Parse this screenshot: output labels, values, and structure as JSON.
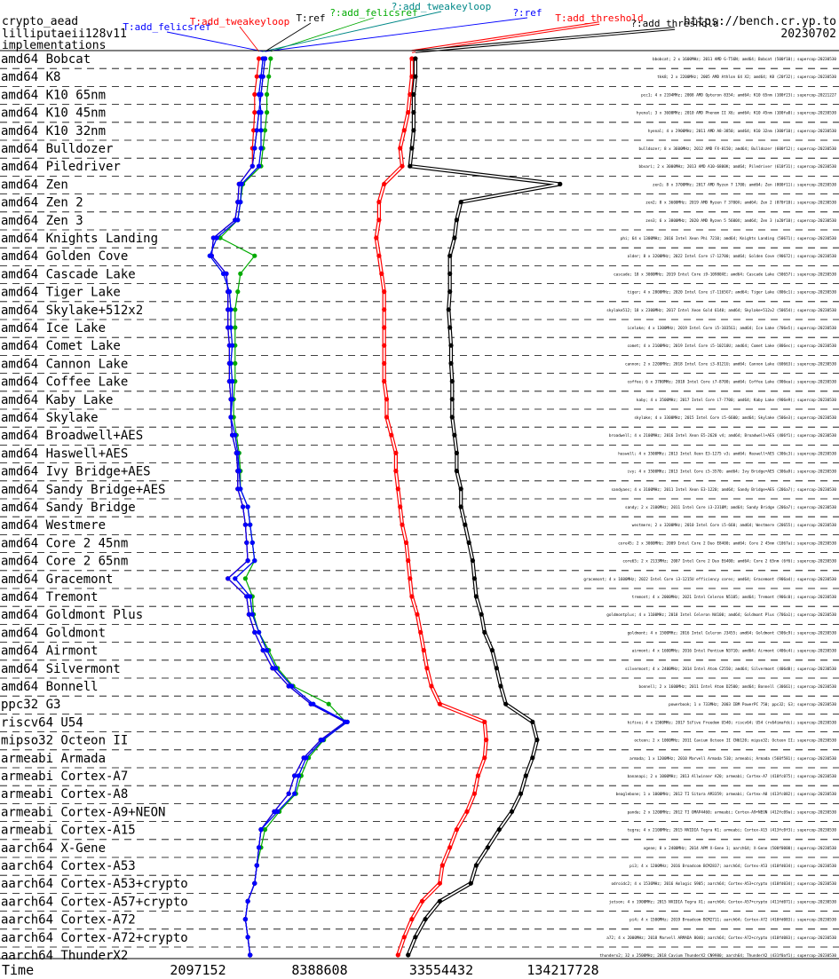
{
  "header": {
    "title_lines": [
      "crypto_aead",
      "lilliputaeii128v11",
      "implementations"
    ],
    "site": "https://bench.cr.yp.to",
    "date": "20230702"
  },
  "chart_data": {
    "type": "line",
    "xlabel": "Time",
    "x_scale": "log2",
    "xlim": [
      1300000,
      240000000
    ],
    "x_ticks": [
      2097152,
      8388608,
      33554432,
      134217728
    ],
    "x_tick_labels": [
      "2097152",
      "8388608",
      "33554432",
      "134217728"
    ],
    "grid": "dashed horizontal separators between machines",
    "categories": [
      "amd64 Bobcat",
      "amd64 K8",
      "amd64 K10 65nm",
      "amd64 K10 45nm",
      "amd64 K10 32nm",
      "amd64 Bulldozer",
      "amd64 Piledriver",
      "amd64 Zen",
      "amd64 Zen 2",
      "amd64 Zen 3",
      "amd64 Knights Landing",
      "amd64 Golden Cove",
      "amd64 Cascade Lake",
      "amd64 Tiger Lake",
      "amd64 Skylake+512x2",
      "amd64 Ice Lake",
      "amd64 Comet Lake",
      "amd64 Cannon Lake",
      "amd64 Coffee Lake",
      "amd64 Kaby Lake",
      "amd64 Skylake",
      "amd64 Broadwell+AES",
      "amd64 Haswell+AES",
      "amd64 Ivy Bridge+AES",
      "amd64 Sandy Bridge+AES",
      "amd64 Sandy Bridge",
      "amd64 Westmere",
      "amd64 Core 2 45nm",
      "amd64 Core 2 65nm",
      "amd64 Gracemont",
      "amd64 Tremont",
      "amd64 Goldmont Plus",
      "amd64 Goldmont",
      "amd64 Airmont",
      "amd64 Silvermont",
      "amd64 Bonnell",
      "ppc32 G3",
      "riscv64 U54",
      "mipso32 Octeon II",
      "armeabi Armada",
      "armeabi Cortex-A7",
      "armeabi Cortex-A8",
      "armeabi Cortex-A9+NEON",
      "armeabi Cortex-A15",
      "aarch64 X-Gene",
      "aarch64 Cortex-A53",
      "aarch64 Cortex-A53+crypto",
      "aarch64 Cortex-A57+crypto",
      "aarch64 Cortex-A72",
      "aarch64 Cortex-A72+crypto",
      "aarch64 ThunderX2"
    ],
    "series": [
      {
        "name": "T:add_felicsref",
        "color": "#0000ff",
        "values": [
          4400000,
          4300000,
          4200000,
          4300000,
          4300000,
          4300000,
          4200000,
          3450000,
          3400000,
          3300000,
          2600000,
          2400000,
          2800000,
          3000000,
          3050000,
          3050000,
          3100000,
          3050000,
          3100000,
          3100000,
          3050000,
          3200000,
          3300000,
          3350000,
          3400000,
          3700000,
          3800000,
          3900000,
          4000000,
          3200000,
          3800000,
          3900000,
          4200000,
          4600000,
          5100000,
          6100000,
          7800000,
          11500000,
          8700000,
          7200000,
          6600000,
          6300000,
          5200000,
          4300000,
          4200000,
          4100000,
          4000000,
          3700000,
          3600000,
          3700000,
          3800000
        ]
      },
      {
        "name": "T:add_tweakeyloop",
        "color": "#ff0000",
        "values": [
          4200000,
          4100000,
          4000000,
          4000000,
          3950000,
          3900000,
          3900000,
          3350000,
          3300000,
          3200000,
          2500000,
          2450000,
          2900000,
          2950000,
          2950000,
          2950000,
          3000000,
          3000000,
          3000000,
          3050000,
          3050000,
          3100000,
          3250000,
          3300000,
          3300000,
          3500000,
          3600000,
          3650000,
          3700000,
          2950000,
          3650000,
          3750000,
          4000000,
          4400000,
          4900000,
          5900000,
          7600000,
          11200000,
          8500000,
          7000000,
          6300000,
          5900000,
          5000000,
          4300000,
          4200000,
          4100000,
          4000000,
          3700000,
          3600000,
          3700000,
          3800000
        ]
      },
      {
        "name": "T:ref",
        "color": "#000000",
        "values": [
          4500000,
          4400000,
          4300000,
          4200000,
          4100000,
          4000000,
          3900000,
          3350000,
          3300000,
          3200000,
          2500000,
          2450000,
          2900000,
          2950000,
          2950000,
          2950000,
          3000000,
          3000000,
          3000000,
          3050000,
          3050000,
          3100000,
          3250000,
          3300000,
          3300000,
          3500000,
          3600000,
          3650000,
          3700000,
          2950000,
          3650000,
          3750000,
          4000000,
          4400000,
          4900000,
          5900000,
          7600000,
          11200000,
          8500000,
          7000000,
          6300000,
          5900000,
          5000000,
          4300000,
          4200000,
          4100000,
          4000000,
          3700000,
          3600000,
          3700000,
          3800000
        ]
      },
      {
        "name": "?:add_felicsref",
        "color": "#00aa00",
        "values": [
          4800000,
          4700000,
          4600000,
          4600000,
          4500000,
          4400000,
          4300000,
          3500000,
          3400000,
          3300000,
          2700000,
          4000000,
          3400000,
          3300000,
          3200000,
          3200000,
          3200000,
          3200000,
          3200000,
          3150000,
          3150000,
          3250000,
          3350000,
          3400000,
          3400000,
          3700000,
          3800000,
          3900000,
          4000000,
          3600000,
          3900000,
          3950000,
          4200000,
          4700000,
          5200000,
          6200000,
          9300000,
          11300000,
          8800000,
          7400000,
          6800000,
          6400000,
          5300000,
          4500000,
          4300000,
          4100000,
          4000000,
          3700000,
          3600000,
          3700000,
          3800000
        ]
      },
      {
        "name": "?:add_tweakeyloop",
        "color": "#008888",
        "values": [
          4400000,
          4300000,
          4200000,
          4300000,
          4300000,
          4300000,
          4200000,
          3450000,
          3400000,
          3300000,
          2600000,
          2400000,
          2800000,
          3000000,
          3050000,
          3050000,
          3100000,
          3050000,
          3100000,
          3100000,
          3050000,
          3200000,
          3300000,
          3350000,
          3400000,
          3700000,
          3800000,
          3900000,
          4000000,
          3200000,
          3800000,
          3900000,
          4200000,
          4600000,
          5100000,
          6100000,
          7800000,
          11500000,
          8700000,
          7200000,
          6600000,
          6300000,
          5200000,
          4300000,
          4200000,
          4100000,
          4000000,
          3700000,
          3600000,
          3700000,
          3800000
        ]
      },
      {
        "name": "?:ref",
        "color": "#0000ff",
        "values": [
          4500000,
          4400000,
          4300000,
          4200000,
          4100000,
          4000000,
          3900000,
          3350000,
          3300000,
          3200000,
          2500000,
          2450000,
          2900000,
          2950000,
          2950000,
          2950000,
          3000000,
          3000000,
          3000000,
          3050000,
          3050000,
          3100000,
          3250000,
          3300000,
          3300000,
          3500000,
          3600000,
          3650000,
          3700000,
          2950000,
          3650000,
          3750000,
          4000000,
          4400000,
          4900000,
          5900000,
          7600000,
          11200000,
          8500000,
          7000000,
          6300000,
          5900000,
          5000000,
          4300000,
          4200000,
          4100000,
          4000000,
          3700000,
          3600000,
          3700000,
          3800000
        ]
      },
      {
        "name": "T:add_threshold",
        "color": "#ff0000",
        "values": [
          24000000,
          24000000,
          23500000,
          23000000,
          22000000,
          21000000,
          21500000,
          17500000,
          16500000,
          16500000,
          16000000,
          16500000,
          17000000,
          17500000,
          17500000,
          17500000,
          17500000,
          17500000,
          17500000,
          18000000,
          18000000,
          19000000,
          20000000,
          20000000,
          20500000,
          21000000,
          21500000,
          22500000,
          23000000,
          23500000,
          24000000,
          25500000,
          26500000,
          27500000,
          28500000,
          30000000,
          33000000,
          55000000,
          56000000,
          55000000,
          51000000,
          49000000,
          45000000,
          40000000,
          37000000,
          34000000,
          33000000,
          27000000,
          24000000,
          22000000,
          20500000
        ]
      },
      {
        "name": "?:add_threshold",
        "color": "#000000",
        "values": [
          25000000,
          25000000,
          24500000,
          24500000,
          24500000,
          24000000,
          23500000,
          130000000,
          42000000,
          40000000,
          39000000,
          37000000,
          37000000,
          37000000,
          36500000,
          37000000,
          37500000,
          37500000,
          38000000,
          38000000,
          38000000,
          39000000,
          40000000,
          40000000,
          42000000,
          42000000,
          44000000,
          46000000,
          48000000,
          49000000,
          50000000,
          53000000,
          55000000,
          60000000,
          63000000,
          66000000,
          70000000,
          95000000,
          100000000,
          95000000,
          88000000,
          83000000,
          75000000,
          65000000,
          57000000,
          50000000,
          47000000,
          33000000,
          28000000,
          25000000,
          23000000
        ]
      }
    ]
  },
  "machine_notes": [
    "bbobcat; 2 x 1600MHz; 2011 AMD G-T56N; amd64; Bobcat (500f10); supercop-20230530",
    "tkk8; 2 x 2200MHz; 2005 AMD Athlon 64 X2; amd64; K8 (20f32); supercop-20230530",
    "pcc1; 4 x 2194MHz; 2008 AMD Opteron 8354; amd64; K10 65nm (100f23); supercop-20221227",
    "hyenal; 3 x 3600MHz; 2010 AMD Phenom II X6; amd64; K10 45nm (100fa0); supercop-20230530",
    "hyenal; 4 x 2900MHz; 2011 AMD A8-3850; amd64; K10 32nm (300f10); supercop-20230530",
    "bulldozer; 8 x 3600MHz; 2012 AMD FX-8150; amd64; Bulldozer (600f12); supercop-20230530",
    "bbvari; 2 x 3000MHz; 2013 AMD A10-6800K; amd64; Piledriver (610f31); supercop-20230530",
    "zen1; 8 x 3700MHz; 2017 AMD Ryzen 7 1700; amd64; Zen (800f11); supercop-20230530",
    "zen2; 8 x 3600MHz; 2019 AMD Ryzen 7 3700X; amd64; Zen 2 (870f10); supercop-20230530",
    "zen3; 6 x 3800MHz; 2020 AMD Ryzen 5 5600X; amd64; Zen 3 (a20f10); supercop-20230530",
    "phi; 64 x 1300MHz; 2016 Intel Xeon Phi 7210; amd64; Knights Landing (50671); supercop-20230530",
    "alder; 8 x 3200MHz; 2022 Intel Core i7-12700; amd64; Golden Cove (90672); supercop-20230530",
    "cascade; 18 x 3000MHz; 2019 Intel Core i9-10980XE; amd64; Cascade Lake (50657); supercop-20230530",
    "tiger; 4 x 2800MHz; 2020 Intel Core i7-1165G7; amd64; Tiger Lake (806c1); supercop-20230530",
    "skylake512; 18 x 2300MHz; 2017 Intel Xeon Gold 6140; amd64; Skylake+512x2 (50654); supercop-20230530",
    "icelake; 4 x 1300MHz; 2019 Intel Core i5-1035G1; amd64; Ice Lake (706e5); supercop-20230530",
    "comet; 4 x 2100MHz; 2019 Intel Core i5-10210U; amd64; Comet Lake (806ec); supercop-20230530",
    "cannon; 2 x 2200MHz; 2018 Intel Core i3-8121U; amd64; Cannon Lake (60663); supercop-20230530",
    "coffee; 6 x 3700MHz; 2018 Intel Core i7-8700; amd64; Coffee Lake (906ea); supercop-20230530",
    "kaby; 4 x 3500MHz; 2017 Intel Core i7-7700; amd64; Kaby Lake (906e9); supercop-20230530",
    "skylake; 4 x 3300MHz; 2015 Intel Core i5-6600; amd64; Skylake (506e3); supercop-20230530",
    "broadwell; 4 x 2100MHz; 2016 Intel Xeon E5-2620 v4; amd64; Broadwell+AES (406f1); supercop-20230530",
    "haswell; 4 x 3500MHz; 2013 Intel Xeon E3-1275 v3; amd64; Haswell+AES (306c3); supercop-20230530",
    "ivy; 4 x 3500MHz; 2013 Intel Core i5-3570; amd64; Ivy Bridge+AES (306a9); supercop-20230530",
    "sandyaes; 4 x 3100MHz; 2011 Intel Xeon E3-1220; amd64; Sandy Bridge+AES (206a7); supercop-20230530",
    "sandy; 2 x 2100MHz; 2011 Intel Core i3-2310M; amd64; Sandy Bridge (206a7); supercop-20230530",
    "westmere; 2 x 3200MHz; 2010 Intel Core i5-660; amd64; Westmere (20655); supercop-20230530",
    "core45; 2 x 3000MHz; 2009 Intel Core 2 Duo E8400; amd64; Core 2 45nm (1067a); supercop-20230530",
    "core65; 2 x 2133MHz; 2007 Intel Core 2 Duo E6400; amd64; Core 2 65nm (6f6); supercop-20230530",
    "gracemont; 4 x 1600MHz; 2022 Intel Core i3-1215U efficiency cores; amd64; Gracemont (906a4); supercop-20230530",
    "tremont; 4 x 2000MHz; 2021 Intel Celeron N5105; amd64; Tremont (906c0); supercop-20230530",
    "goldmontplus; 4 x 1100MHz; 2018 Intel Celeron N4100; amd64; Goldmont Plus (706a1); supercop-20230530",
    "goldmont; 4 x 1500MHz; 2016 Intel Celeron J3455; amd64; Goldmont (506c9); supercop-20230530",
    "airmont; 4 x 1600MHz; 2016 Intel Pentium N3710; amd64; Airmont (406c4); supercop-20230530",
    "silvermont; 4 x 2400MHz; 2014 Intel Atom C2550; amd64; Silvermont (406d8); supercop-20230530",
    "bonnell; 2 x 1600MHz; 2011 Intel Atom D2500; amd64; Bonnell (30661); supercop-20230530",
    "powerbook; 1 x 733MHz; 2003 IBM PowerPC 750; ppc32; G3; supercop-20230530",
    "hifive; 4 x 1500MHz; 2017 SiFive Freedom U540; riscv64; U54 (rv64imafdc); supercop-20230530",
    "octeon; 2 x 1000MHz; 2011 Cavium Octeon II CN6120; mipso32; Octeon II; supercop-20230530",
    "armada; 1 x 1200MHz; 2010 Marvell Armada 510; armeabi; Armada (560f581); supercop-20230530",
    "bananapi; 2 x 1000MHz; 2013 Allwinner A20; armeabi; Cortex-A7 (410fc075); supercop-20230530",
    "beaglebone; 1 x 1000MHz; 2012 TI Sitara AM3359; armeabi; Cortex-A8 (413fc082); supercop-20230530",
    "panda; 2 x 1200MHz; 2012 TI OMAP4460; armeabi; Cortex-A9+NEON (412fc09a); supercop-20230530",
    "tegra; 4 x 2100MHz; 2015 NVIDIA Tegra K1; armeabi; Cortex-A15 (413fc0f3); supercop-20230530",
    "xgene; 8 x 2400MHz; 2014 APM X-Gene 1; aarch64; X-Gene (500f0000); supercop-20230530",
    "pi3; 4 x 1200MHz; 2016 Broadcom BCM2837; aarch64; Cortex-A53 (410fd034); supercop-20230530",
    "odroidc2; 4 x 1536MHz; 2016 Amlogic S905; aarch64; Cortex-A53+crypto (410fd034); supercop-20230530",
    "jetson; 4 x 1900MHz; 2015 NVIDIA Tegra X1; aarch64; Cortex-A57+crypto (411fd071); supercop-20230530",
    "pi4; 4 x 1500MHz; 2019 Broadcom BCM2711; aarch64; Cortex-A72 (410fd083); supercop-20230530",
    "a72; 4 x 2000MHz; 2018 Marvell ARMADA 8040; aarch64; Cortex-A72+crypto (410fd083); supercop-20230530",
    "thunderx2; 32 x 2500MHz; 2018 Cavium ThunderX2 CN9980; aarch64; ThunderX2 (431f0af1); supercop-20230530"
  ]
}
